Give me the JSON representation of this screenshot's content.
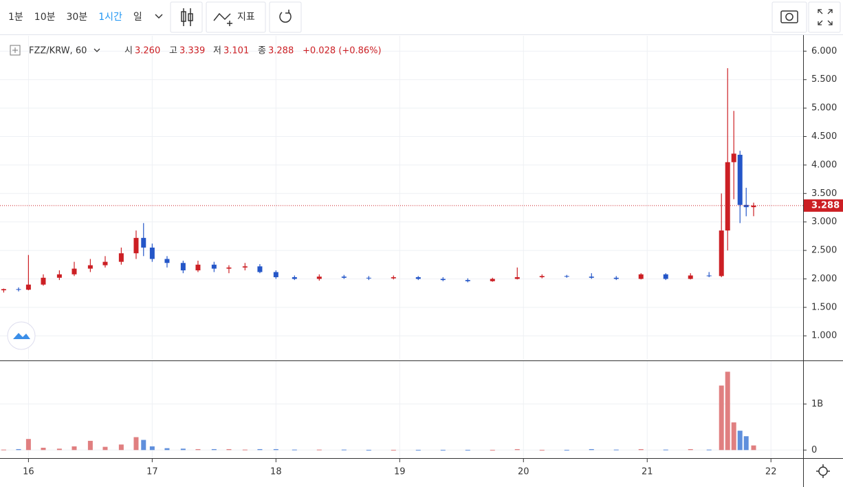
{
  "toolbar": {
    "intervals": [
      "1분",
      "10분",
      "30분",
      "1시간",
      "일"
    ],
    "active_interval": 3,
    "indicator": "지표"
  },
  "legend": {
    "symbol": "FZZ/KRW, 60",
    "open_label": "시",
    "open": "3.260",
    "high_label": "고",
    "high": "3.339",
    "low_label": "저",
    "low": "3.101",
    "close_label": "종",
    "close": "3.288",
    "change": "+0.028 (+0.86%)"
  },
  "chart_data": {
    "type": "candlestick",
    "x": [
      15.8,
      15.92,
      16.0,
      16.12,
      16.25,
      16.37,
      16.5,
      16.62,
      16.75,
      16.87,
      16.93,
      17.0,
      17.12,
      17.25,
      17.37,
      17.5,
      17.62,
      17.75,
      17.87,
      18.0,
      18.15,
      18.35,
      18.55,
      18.75,
      18.95,
      19.15,
      19.35,
      19.55,
      19.75,
      19.95,
      20.15,
      20.35,
      20.55,
      20.75,
      20.95,
      21.15,
      21.35,
      21.5,
      21.6,
      21.65,
      21.7,
      21.75,
      21.8,
      21.86
    ],
    "open": [
      1.8,
      1.82,
      1.81,
      1.9,
      2.02,
      2.08,
      2.18,
      2.24,
      2.3,
      2.45,
      2.72,
      2.55,
      2.35,
      2.28,
      2.15,
      2.25,
      2.18,
      2.2,
      2.22,
      2.12,
      2.03,
      2.0,
      2.04,
      2.02,
      2.01,
      2.03,
      2.0,
      1.98,
      1.96,
      2.0,
      2.03,
      2.05,
      2.04,
      2.02,
      2.0,
      2.08,
      2.0,
      2.06,
      2.05,
      2.85,
      4.05,
      4.18,
      3.3,
      3.26
    ],
    "high": [
      1.83,
      1.85,
      2.42,
      2.08,
      2.15,
      2.3,
      2.35,
      2.4,
      2.55,
      2.85,
      2.98,
      2.62,
      2.4,
      2.32,
      2.32,
      2.3,
      2.24,
      2.28,
      2.26,
      2.15,
      2.06,
      2.08,
      2.07,
      2.05,
      2.06,
      2.05,
      2.03,
      2.01,
      2.02,
      2.2,
      2.08,
      2.07,
      2.1,
      2.05,
      2.1,
      2.1,
      2.1,
      2.12,
      3.5,
      5.7,
      4.95,
      4.25,
      3.6,
      3.339
    ],
    "low": [
      1.76,
      1.78,
      1.8,
      1.88,
      1.98,
      2.05,
      2.12,
      2.2,
      2.25,
      2.35,
      2.4,
      2.3,
      2.2,
      2.1,
      2.12,
      2.12,
      2.1,
      2.15,
      2.1,
      2.0,
      1.98,
      1.97,
      2.0,
      1.98,
      1.99,
      1.98,
      1.96,
      1.94,
      1.95,
      1.99,
      2.01,
      2.02,
      2.0,
      1.98,
      1.99,
      1.98,
      1.99,
      2.03,
      2.03,
      2.5,
      3.4,
      2.98,
      3.1,
      3.101
    ],
    "close": [
      1.82,
      1.81,
      1.9,
      2.02,
      2.08,
      2.18,
      2.24,
      2.3,
      2.45,
      2.72,
      2.55,
      2.35,
      2.28,
      2.15,
      2.25,
      2.18,
      2.2,
      2.22,
      2.12,
      2.03,
      2.0,
      2.04,
      2.02,
      2.01,
      2.03,
      2.0,
      1.98,
      1.96,
      2.0,
      2.03,
      2.05,
      2.04,
      2.02,
      2.0,
      2.08,
      2.0,
      2.06,
      2.05,
      2.85,
      4.05,
      4.2,
      3.3,
      3.26,
      3.288
    ],
    "volume": [
      10000000,
      20000000,
      240000000,
      50000000,
      30000000,
      80000000,
      200000000,
      70000000,
      120000000,
      280000000,
      220000000,
      80000000,
      40000000,
      30000000,
      20000000,
      20000000,
      20000000,
      10000000,
      20000000,
      20000000,
      10000000,
      10000000,
      10000000,
      5000000,
      5000000,
      5000000,
      5000000,
      5000000,
      5000000,
      20000000,
      5000000,
      5000000,
      20000000,
      10000000,
      20000000,
      10000000,
      20000000,
      10000000,
      1400000000,
      1700000000,
      600000000,
      420000000,
      300000000,
      100000000
    ],
    "up_color": "#cc1f24",
    "down_color": "#2456c8",
    "up_volume_color": "#e07f80",
    "down_volume_color": "#5f8fdc",
    "last_price": 3.288,
    "last_price_color": "#cc1f24",
    "xlim": [
      15.77,
      22.26
    ],
    "xticks": [
      16,
      17,
      18,
      19,
      20,
      21,
      22
    ],
    "ylim": [
      0.58,
      6.27
    ],
    "yticks": [
      {
        "value": 1,
        "label": "1.000"
      },
      {
        "value": 1.5,
        "label": "1.500"
      },
      {
        "value": 2,
        "label": "2.000"
      },
      {
        "value": 2.5,
        "label": "2.500"
      },
      {
        "value": 3,
        "label": "3.000"
      },
      {
        "value": 3.5,
        "label": "3.500"
      },
      {
        "value": 4,
        "label": "4.000"
      },
      {
        "value": 4.5,
        "label": "4.500"
      },
      {
        "value": 5,
        "label": "5.000"
      },
      {
        "value": 5.5,
        "label": "5.500"
      },
      {
        "value": 6,
        "label": "6.000"
      }
    ],
    "volume_lim": [
      -160000000,
      1930000000
    ],
    "volume_ticks": [
      0,
      {
        "value": 1000000000,
        "label": "1B"
      }
    ],
    "grid": true
  }
}
